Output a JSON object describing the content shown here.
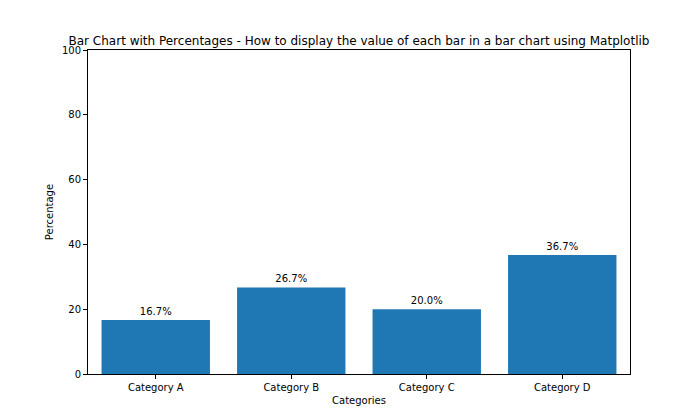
{
  "chart_data": {
    "type": "bar",
    "title": "Bar Chart with Percentages - How to display the value of each bar in a bar chart using Matplotlib",
    "x_label": "Categories",
    "y_label": "Percentage",
    "categories": [
      "Category A",
      "Category B",
      "Category C",
      "Category D"
    ],
    "values": [
      16.7,
      26.7,
      20.0,
      36.7
    ],
    "value_labels": [
      "16.7%",
      "26.7%",
      "20.0%",
      "36.7%"
    ],
    "data_labels": true,
    "color": "#1f77b4",
    "ylim": [
      0,
      100
    ],
    "yticks": [
      0,
      20,
      40,
      60,
      80,
      100
    ],
    "grid": false
  }
}
